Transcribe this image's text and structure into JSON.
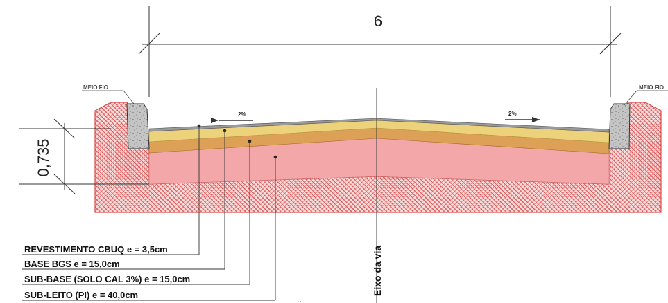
{
  "dimensions": {
    "width_label": "6",
    "height_label": "0,735"
  },
  "curb": {
    "left_label": "MEIO FIO",
    "right_label": "MEIO FIO"
  },
  "slopes": {
    "left": "2%",
    "right": "2%"
  },
  "axis_label": "Eixo da via",
  "layers": [
    {
      "label": "REVESTIMENTO CBUQ e = 3,5cm",
      "color": "#9a9a9a"
    },
    {
      "label": "BASE BGS e = 15,0cm",
      "color": "#ecd27a"
    },
    {
      "label": "SUB-BASE (SOLO CAL 3%) e = 15,0cm",
      "color": "#dca056"
    },
    {
      "label": "SUB-LEITO (PI) e = 40,0cm",
      "color": "#f4a7a9"
    }
  ],
  "colors": {
    "hatch": "#d84a4a",
    "hatch_fill": "#f6d0d0",
    "curb": "#bdbdbd"
  }
}
